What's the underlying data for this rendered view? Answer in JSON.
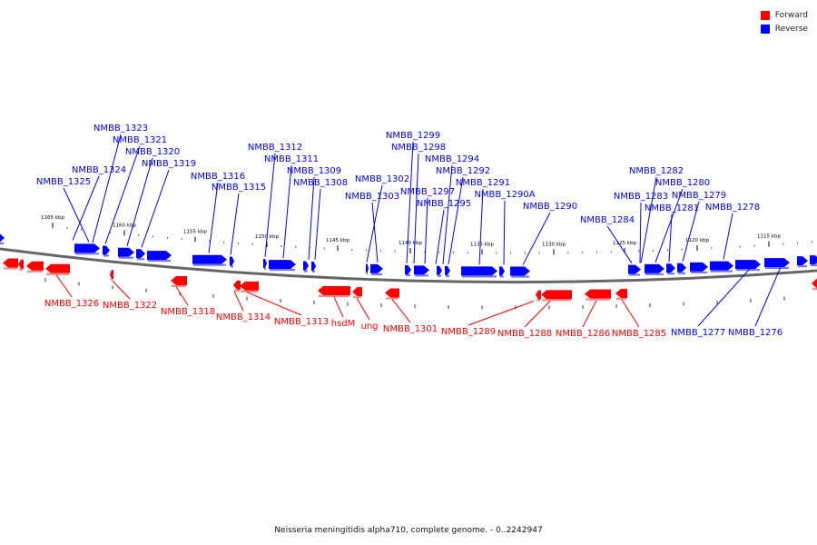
{
  "legend": {
    "forward_label": "Forward",
    "reverse_label": "Reverse",
    "forward_color": "#ff0000",
    "reverse_color": "#0000ff"
  },
  "footer": "Neisseria meningitidis alpha710, complete genome. - 0..2242947",
  "ticks": [
    {
      "label": "1165 kbp"
    },
    {
      "label": "1160 kbp"
    },
    {
      "label": "1155 kbp"
    },
    {
      "label": "1150 kbp"
    },
    {
      "label": "1145 kbp"
    },
    {
      "label": "1140 kbp"
    },
    {
      "label": "1135 kbp"
    },
    {
      "label": "1130 kbp"
    },
    {
      "label": "1125 kbp"
    },
    {
      "label": "1120 kbp"
    },
    {
      "label": "1115 kbp"
    }
  ],
  "reverse_labels": [
    "NMBB_1323",
    "NMBB_1321",
    "NMBB_1320",
    "NMBB_1319",
    "NMBB_1324",
    "NMBB_1325",
    "NMBB_1316",
    "NMBB_1315",
    "NMBB_1312",
    "NMBB_1311",
    "NMBB_1309",
    "NMBB_1308",
    "NMBB_1302",
    "NMBB_1303",
    "NMBB_1299",
    "NMBB_1298",
    "NMBB_1297",
    "NMBB_1294",
    "NMBB_1292",
    "NMBB_1295",
    "NMBB_1291",
    "NMBB_1290A",
    "NMBB_1290",
    "NMBB_1282",
    "NMBB_1280",
    "NMBB_1283",
    "NMBB_1279",
    "NMBB_1281",
    "NMBB_1278",
    "NMBB_1284",
    "NMBB_1277",
    "NMBB_1276"
  ],
  "forward_labels": [
    "NMBB_1326",
    "NMBB_1322",
    "NMBB_1318",
    "NMBB_1314",
    "NMBB_1313",
    "hsdM",
    "ung",
    "NMBB_1301",
    "NMBB_1289",
    "NMBB_1288",
    "NMBB_1286",
    "NMBB_1285"
  ]
}
